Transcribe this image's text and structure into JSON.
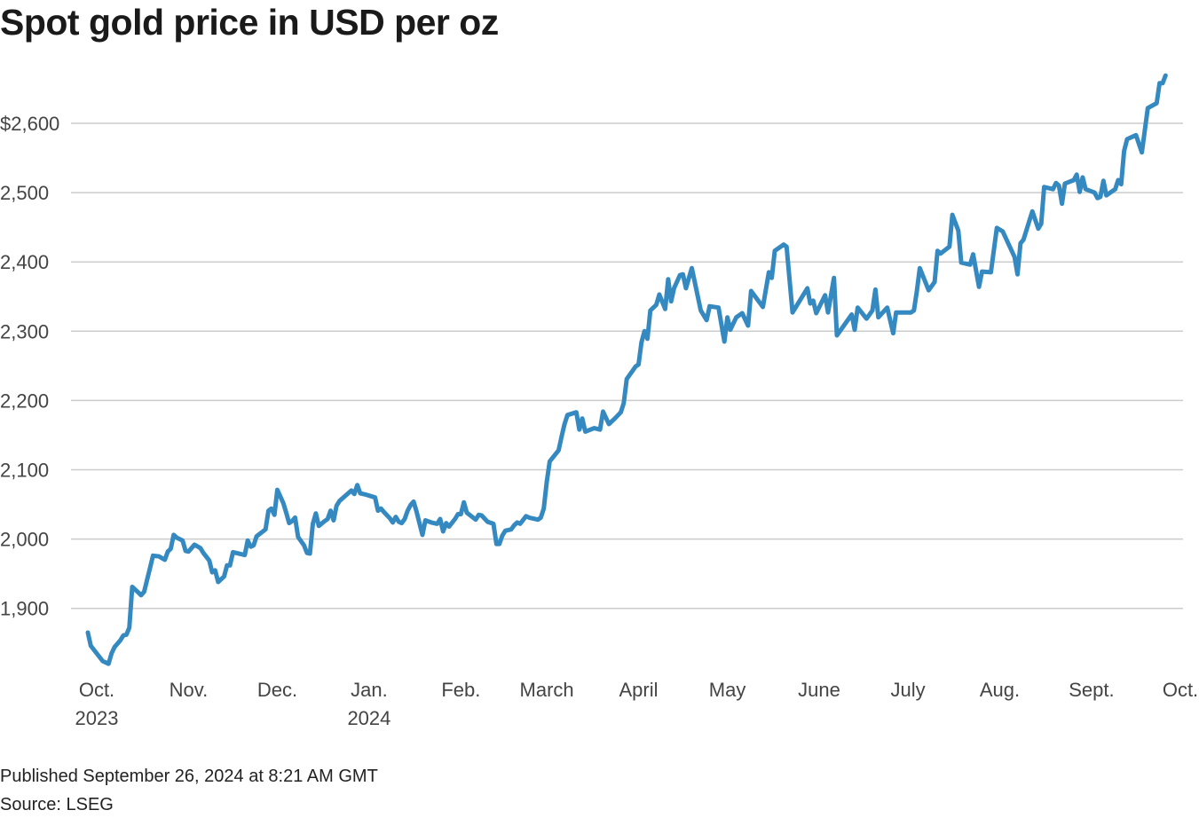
{
  "chart_data": {
    "type": "line",
    "title": "Spot gold price in USD per oz",
    "xlabel": "",
    "ylabel": "",
    "ylim": [
      1810,
      2680
    ],
    "xlim": [
      "2023-10-01",
      "2024-10-01"
    ],
    "grid": "horizontal",
    "line_color": "#3589c1",
    "grid_color": "#cccccc",
    "y_ticks": [
      {
        "value": 1900,
        "label": "1,900"
      },
      {
        "value": 2000,
        "label": "2,000"
      },
      {
        "value": 2100,
        "label": "2,100"
      },
      {
        "value": 2200,
        "label": "2,200"
      },
      {
        "value": 2300,
        "label": "2,300"
      },
      {
        "value": 2400,
        "label": "2,400"
      },
      {
        "value": 2500,
        "label": "2,500"
      },
      {
        "value": 2600,
        "label": "$2,600"
      }
    ],
    "x_ticks": [
      {
        "date": "2023-10-01",
        "label": "Oct.",
        "sublabel": "2023"
      },
      {
        "date": "2023-11-01",
        "label": "Nov."
      },
      {
        "date": "2023-12-01",
        "label": "Dec."
      },
      {
        "date": "2024-01-01",
        "label": "Jan.",
        "sublabel": "2024"
      },
      {
        "date": "2024-02-01",
        "label": "Feb."
      },
      {
        "date": "2024-03-01",
        "label": "March"
      },
      {
        "date": "2024-04-01",
        "label": "April"
      },
      {
        "date": "2024-05-01",
        "label": "May"
      },
      {
        "date": "2024-06-01",
        "label": "June"
      },
      {
        "date": "2024-07-01",
        "label": "July"
      },
      {
        "date": "2024-08-01",
        "label": "Aug."
      },
      {
        "date": "2024-09-01",
        "label": "Sept."
      },
      {
        "date": "2024-10-01",
        "label": "Oct."
      }
    ],
    "series": [
      {
        "points": [
          [
            "2023-09-28",
            1865
          ],
          [
            "2023-09-29",
            1846
          ],
          [
            "2023-10-01",
            1835
          ],
          [
            "2023-10-03",
            1824
          ],
          [
            "2023-10-05",
            1820
          ],
          [
            "2023-10-06",
            1835
          ],
          [
            "2023-10-07",
            1844
          ],
          [
            "2023-10-09",
            1854
          ],
          [
            "2023-10-10",
            1861
          ],
          [
            "2023-10-11",
            1862
          ],
          [
            "2023-10-12",
            1872
          ],
          [
            "2023-10-13",
            1931
          ],
          [
            "2023-10-15",
            1923
          ],
          [
            "2023-10-16",
            1919
          ],
          [
            "2023-10-17",
            1924
          ],
          [
            "2023-10-19",
            1958
          ],
          [
            "2023-10-20",
            1976
          ],
          [
            "2023-10-22",
            1975
          ],
          [
            "2023-10-24",
            1970
          ],
          [
            "2023-10-25",
            1982
          ],
          [
            "2023-10-26",
            1986
          ],
          [
            "2023-10-27",
            2006
          ],
          [
            "2023-10-28",
            2002
          ],
          [
            "2023-10-30",
            1998
          ],
          [
            "2023-10-31",
            1983
          ],
          [
            "2023-11-01",
            1982
          ],
          [
            "2023-11-02",
            1987
          ],
          [
            "2023-11-03",
            1992
          ],
          [
            "2023-11-05",
            1987
          ],
          [
            "2023-11-06",
            1980
          ],
          [
            "2023-11-08",
            1969
          ],
          [
            "2023-11-09",
            1952
          ],
          [
            "2023-11-10",
            1955
          ],
          [
            "2023-11-11",
            1938
          ],
          [
            "2023-11-12",
            1942
          ],
          [
            "2023-11-13",
            1946
          ],
          [
            "2023-11-14",
            1962
          ],
          [
            "2023-11-15",
            1962
          ],
          [
            "2023-11-16",
            1981
          ],
          [
            "2023-11-17",
            1980
          ],
          [
            "2023-11-20",
            1977
          ],
          [
            "2023-11-21",
            1998
          ],
          [
            "2023-11-22",
            1989
          ],
          [
            "2023-11-23",
            1991
          ],
          [
            "2023-11-24",
            2004
          ],
          [
            "2023-11-27",
            2014
          ],
          [
            "2023-11-28",
            2041
          ],
          [
            "2023-11-29",
            2044
          ],
          [
            "2023-11-30",
            2035
          ],
          [
            "2023-12-01",
            2071
          ],
          [
            "2023-12-03",
            2052
          ],
          [
            "2023-12-04",
            2038
          ],
          [
            "2023-12-05",
            2023
          ],
          [
            "2023-12-06",
            2026
          ],
          [
            "2023-12-07",
            2031
          ],
          [
            "2023-12-08",
            2003
          ],
          [
            "2023-12-10",
            1991
          ],
          [
            "2023-12-11",
            1980
          ],
          [
            "2023-12-12",
            1979
          ],
          [
            "2023-12-13",
            2022
          ],
          [
            "2023-12-14",
            2037
          ],
          [
            "2023-12-15",
            2019
          ],
          [
            "2023-12-17",
            2026
          ],
          [
            "2023-12-18",
            2029
          ],
          [
            "2023-12-19",
            2041
          ],
          [
            "2023-12-20",
            2027
          ],
          [
            "2023-12-21",
            2048
          ],
          [
            "2023-12-22",
            2055
          ],
          [
            "2023-12-26",
            2070
          ],
          [
            "2023-12-27",
            2065
          ],
          [
            "2023-12-28",
            2078
          ],
          [
            "2023-12-29",
            2066
          ],
          [
            "2023-12-31",
            2064
          ],
          [
            "2024-01-03",
            2060
          ],
          [
            "2024-01-04",
            2041
          ],
          [
            "2024-01-05",
            2044
          ],
          [
            "2024-01-06",
            2039
          ],
          [
            "2024-01-08",
            2030
          ],
          [
            "2024-01-09",
            2024
          ],
          [
            "2024-01-10",
            2032
          ],
          [
            "2024-01-11",
            2025
          ],
          [
            "2024-01-12",
            2023
          ],
          [
            "2024-01-13",
            2029
          ],
          [
            "2024-01-14",
            2041
          ],
          [
            "2024-01-15",
            2049
          ],
          [
            "2024-01-16",
            2054
          ],
          [
            "2024-01-17",
            2040
          ],
          [
            "2024-01-18",
            2023
          ],
          [
            "2024-01-19",
            2006
          ],
          [
            "2024-01-20",
            2027
          ],
          [
            "2024-01-22",
            2024
          ],
          [
            "2024-01-24",
            2022
          ],
          [
            "2024-01-25",
            2029
          ],
          [
            "2024-01-26",
            2011
          ],
          [
            "2024-01-27",
            2023
          ],
          [
            "2024-01-28",
            2018
          ],
          [
            "2024-01-30",
            2029
          ],
          [
            "2024-01-31",
            2036
          ],
          [
            "2024-02-01",
            2036
          ],
          [
            "2024-02-02",
            2053
          ],
          [
            "2024-02-03",
            2038
          ],
          [
            "2024-02-06",
            2028
          ],
          [
            "2024-02-07",
            2035
          ],
          [
            "2024-02-08",
            2034
          ],
          [
            "2024-02-10",
            2025
          ],
          [
            "2024-02-12",
            2022
          ],
          [
            "2024-02-13",
            1993
          ],
          [
            "2024-02-14",
            1993
          ],
          [
            "2024-02-15",
            2005
          ],
          [
            "2024-02-16",
            2012
          ],
          [
            "2024-02-18",
            2014
          ],
          [
            "2024-02-19",
            2020
          ],
          [
            "2024-02-20",
            2024
          ],
          [
            "2024-02-21",
            2022
          ],
          [
            "2024-02-23",
            2033
          ],
          [
            "2024-02-24",
            2031
          ],
          [
            "2024-02-27",
            2028
          ],
          [
            "2024-02-28",
            2031
          ],
          [
            "2024-02-29",
            2044
          ],
          [
            "2024-03-01",
            2083
          ],
          [
            "2024-03-02",
            2112
          ],
          [
            "2024-03-05",
            2128
          ],
          [
            "2024-03-06",
            2148
          ],
          [
            "2024-03-07",
            2166
          ],
          [
            "2024-03-08",
            2179
          ],
          [
            "2024-03-11",
            2183
          ],
          [
            "2024-03-12",
            2158
          ],
          [
            "2024-03-13",
            2174
          ],
          [
            "2024-03-14",
            2155
          ],
          [
            "2024-03-17",
            2160
          ],
          [
            "2024-03-19",
            2158
          ],
          [
            "2024-03-20",
            2184
          ],
          [
            "2024-03-22",
            2166
          ],
          [
            "2024-03-24",
            2174
          ],
          [
            "2024-03-26",
            2183
          ],
          [
            "2024-03-27",
            2196
          ],
          [
            "2024-03-28",
            2231
          ],
          [
            "2024-03-31",
            2249
          ],
          [
            "2024-04-01",
            2252
          ],
          [
            "2024-04-02",
            2284
          ],
          [
            "2024-04-03",
            2300
          ],
          [
            "2024-04-04",
            2289
          ],
          [
            "2024-04-05",
            2330
          ],
          [
            "2024-04-07",
            2338
          ],
          [
            "2024-04-08",
            2353
          ],
          [
            "2024-04-10",
            2332
          ],
          [
            "2024-04-11",
            2375
          ],
          [
            "2024-04-12",
            2343
          ],
          [
            "2024-04-13",
            2362
          ],
          [
            "2024-04-15",
            2381
          ],
          [
            "2024-04-16",
            2382
          ],
          [
            "2024-04-17",
            2362
          ],
          [
            "2024-04-19",
            2391
          ],
          [
            "2024-04-22",
            2330
          ],
          [
            "2024-04-24",
            2316
          ],
          [
            "2024-04-25",
            2336
          ],
          [
            "2024-04-28",
            2334
          ],
          [
            "2024-04-30",
            2285
          ],
          [
            "2024-05-01",
            2320
          ],
          [
            "2024-05-02",
            2302
          ],
          [
            "2024-05-04",
            2320
          ],
          [
            "2024-05-06",
            2326
          ],
          [
            "2024-05-08",
            2308
          ],
          [
            "2024-05-09",
            2358
          ],
          [
            "2024-05-13",
            2335
          ],
          [
            "2024-05-15",
            2385
          ],
          [
            "2024-05-16",
            2377
          ],
          [
            "2024-05-17",
            2416
          ],
          [
            "2024-05-20",
            2425
          ],
          [
            "2024-05-21",
            2422
          ],
          [
            "2024-05-23",
            2327
          ],
          [
            "2024-05-28",
            2362
          ],
          [
            "2024-05-29",
            2340
          ],
          [
            "2024-05-30",
            2344
          ],
          [
            "2024-05-31",
            2326
          ],
          [
            "2024-06-03",
            2352
          ],
          [
            "2024-06-04",
            2327
          ],
          [
            "2024-06-06",
            2377
          ],
          [
            "2024-06-07",
            2294
          ],
          [
            "2024-06-12",
            2324
          ],
          [
            "2024-06-13",
            2302
          ],
          [
            "2024-06-14",
            2334
          ],
          [
            "2024-06-17",
            2318
          ],
          [
            "2024-06-19",
            2330
          ],
          [
            "2024-06-20",
            2360
          ],
          [
            "2024-06-21",
            2320
          ],
          [
            "2024-06-24",
            2334
          ],
          [
            "2024-06-26",
            2297
          ],
          [
            "2024-06-27",
            2327
          ],
          [
            "2024-07-02",
            2327
          ],
          [
            "2024-07-03",
            2330
          ],
          [
            "2024-07-04",
            2358
          ],
          [
            "2024-07-05",
            2391
          ],
          [
            "2024-07-08",
            2359
          ],
          [
            "2024-07-10",
            2371
          ],
          [
            "2024-07-11",
            2416
          ],
          [
            "2024-07-12",
            2412
          ],
          [
            "2024-07-15",
            2422
          ],
          [
            "2024-07-16",
            2468
          ],
          [
            "2024-07-18",
            2445
          ],
          [
            "2024-07-19",
            2399
          ],
          [
            "2024-07-22",
            2396
          ],
          [
            "2024-07-23",
            2411
          ],
          [
            "2024-07-25",
            2364
          ],
          [
            "2024-07-26",
            2386
          ],
          [
            "2024-07-29",
            2385
          ],
          [
            "2024-07-31",
            2449
          ],
          [
            "2024-08-02",
            2444
          ],
          [
            "2024-08-06",
            2407
          ],
          [
            "2024-08-07",
            2382
          ],
          [
            "2024-08-08",
            2427
          ],
          [
            "2024-08-09",
            2432
          ],
          [
            "2024-08-12",
            2473
          ],
          [
            "2024-08-14",
            2448
          ],
          [
            "2024-08-15",
            2455
          ],
          [
            "2024-08-16",
            2508
          ],
          [
            "2024-08-19",
            2505
          ],
          [
            "2024-08-20",
            2514
          ],
          [
            "2024-08-21",
            2510
          ],
          [
            "2024-08-22",
            2484
          ],
          [
            "2024-08-23",
            2513
          ],
          [
            "2024-08-26",
            2518
          ],
          [
            "2024-08-27",
            2526
          ],
          [
            "2024-08-28",
            2501
          ],
          [
            "2024-08-29",
            2522
          ],
          [
            "2024-08-30",
            2505
          ],
          [
            "2024-09-02",
            2500
          ],
          [
            "2024-09-03",
            2492
          ],
          [
            "2024-09-04",
            2494
          ],
          [
            "2024-09-05",
            2517
          ],
          [
            "2024-09-06",
            2496
          ],
          [
            "2024-09-09",
            2505
          ],
          [
            "2024-09-10",
            2518
          ],
          [
            "2024-09-11",
            2512
          ],
          [
            "2024-09-12",
            2560
          ],
          [
            "2024-09-13",
            2577
          ],
          [
            "2024-09-16",
            2583
          ],
          [
            "2024-09-18",
            2558
          ],
          [
            "2024-09-20",
            2622
          ],
          [
            "2024-09-23",
            2629
          ],
          [
            "2024-09-24",
            2658
          ],
          [
            "2024-09-25",
            2658
          ],
          [
            "2024-09-26",
            2669
          ]
        ]
      }
    ]
  },
  "footer": {
    "published": "Published September 26, 2024 at 8:21 AM GMT",
    "source": "Source: LSEG"
  }
}
